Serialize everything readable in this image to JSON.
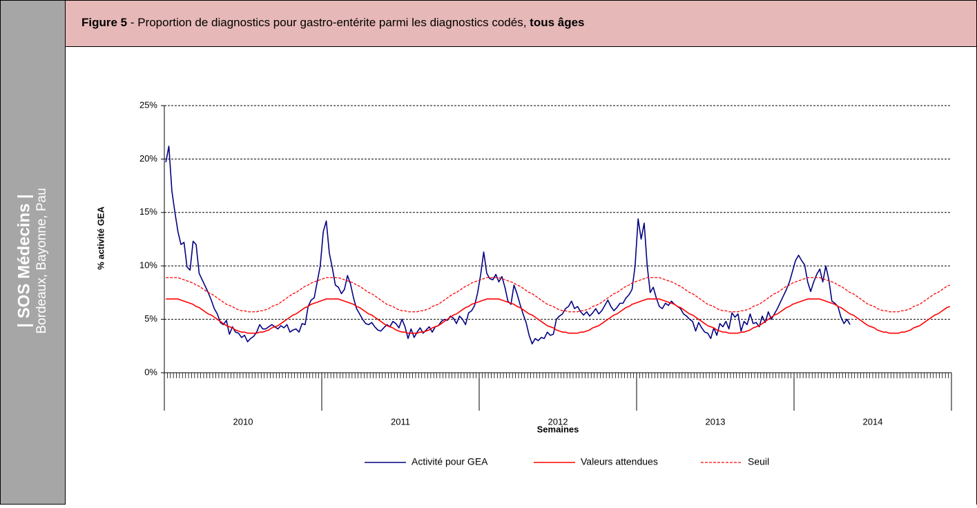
{
  "sidebar": {
    "title": "| SOS Médecins |",
    "subtitle": "Bordeaux, Bayonne, Pau"
  },
  "header": {
    "figure": "Figure 5",
    "text": " - Proportion de diagnostics pour gastro-entérite parmi les diagnostics codés, ",
    "emphasis": "tous âges"
  },
  "chart_data": {
    "type": "line",
    "ylabel": "% activité GEA",
    "xlabel": "Semaines",
    "x_groups": [
      "2010",
      "2011",
      "2012",
      "2013",
      "2014"
    ],
    "categories": [
      null,
      null,
      null,
      null,
      null,
      null,
      null,
      null,
      null,
      null,
      null,
      null,
      null,
      null,
      null,
      null,
      null,
      null,
      null,
      null,
      null,
      null,
      null,
      null,
      null,
      null,
      null,
      null,
      null,
      null,
      null,
      null,
      null,
      null,
      null,
      null,
      null,
      null,
      null,
      null,
      null,
      null,
      null,
      null,
      null,
      null,
      null,
      null,
      null,
      null,
      null,
      null,
      null,
      null,
      null,
      null,
      null,
      null,
      null,
      null,
      null,
      null,
      null,
      null,
      null,
      null,
      null,
      null,
      null,
      null,
      null,
      null,
      null,
      null,
      null,
      null,
      null,
      null,
      null,
      null,
      null,
      null,
      null,
      null,
      null,
      null,
      null,
      null,
      null,
      null,
      null,
      null,
      null,
      null,
      null,
      null,
      null,
      null,
      null,
      null,
      null,
      null,
      null,
      null,
      null,
      null,
      null,
      null,
      null,
      null,
      null,
      null,
      null,
      null,
      null,
      null,
      null,
      null,
      null,
      null,
      null,
      null,
      null,
      null,
      null,
      null,
      null,
      null,
      null,
      null,
      null,
      null,
      null,
      null,
      null,
      null,
      null,
      null,
      null,
      null,
      null,
      null,
      null,
      null,
      null,
      null,
      null,
      null,
      null,
      null,
      null,
      null,
      null,
      null,
      null,
      null,
      null,
      null,
      null,
      null,
      null,
      null,
      null,
      null,
      null,
      null,
      null,
      null,
      null,
      null,
      null,
      null,
      null,
      null,
      null,
      null,
      null,
      null,
      null,
      null,
      null,
      null,
      null,
      null,
      null,
      null,
      null,
      null,
      null,
      null,
      null,
      null,
      null,
      null,
      null,
      null,
      null,
      null,
      null,
      null,
      null,
      null,
      null,
      null,
      null,
      null,
      null,
      null,
      null,
      null,
      null,
      null,
      null,
      null,
      null,
      null,
      null,
      null,
      null,
      null,
      null,
      null,
      null,
      null,
      null,
      null,
      null,
      null,
      null,
      null,
      null,
      null,
      null,
      null,
      null,
      null,
      null,
      null,
      null,
      null,
      null,
      null,
      null,
      null,
      null,
      null,
      null,
      null,
      null,
      null,
      null,
      null,
      null,
      null,
      null,
      null,
      null,
      null,
      null,
      null
    ],
    "series": [
      {
        "name": "Activité pour GEA",
        "color": "#000080",
        "dashed": false,
        "values": [
          19.7,
          21.2,
          17.0,
          15.0,
          13.2,
          12.0,
          12.2,
          9.9,
          9.6,
          12.3,
          12.0,
          9.3,
          8.7,
          8.1,
          7.5,
          6.8,
          6.0,
          5.5,
          4.7,
          4.5,
          4.9,
          3.6,
          4.3,
          3.8,
          3.7,
          3.3,
          3.5,
          2.9,
          3.2,
          3.4,
          3.8,
          4.5,
          4.1,
          4.1,
          4.3,
          4.5,
          4.3,
          4.1,
          4.4,
          4.2,
          4.5,
          3.8,
          4.0,
          4.1,
          3.8,
          4.6,
          4.5,
          6.2,
          6.8,
          7.0,
          8.5,
          10.0,
          13.2,
          14.2,
          11.2,
          9.8,
          8.2,
          8.0,
          7.4,
          7.8,
          9.1,
          8.3,
          7.0,
          6.0,
          5.5,
          5.0,
          4.6,
          4.5,
          4.7,
          4.3,
          4.0,
          3.9,
          4.2,
          4.5,
          4.3,
          4.8,
          4.6,
          4.2,
          5.0,
          4.3,
          3.2,
          4.1,
          3.3,
          3.8,
          4.2,
          3.7,
          4.0,
          4.3,
          3.8,
          4.3,
          4.4,
          4.8,
          5.0,
          4.9,
          5.3,
          5.1,
          4.6,
          5.3,
          5.0,
          4.5,
          5.6,
          5.8,
          6.3,
          7.5,
          9.2,
          11.3,
          9.3,
          8.8,
          8.7,
          9.2,
          8.5,
          9.0,
          8.0,
          6.7,
          6.4,
          8.2,
          7.4,
          6.4,
          5.5,
          4.7,
          3.5,
          2.7,
          3.2,
          3.0,
          3.3,
          3.2,
          3.8,
          3.5,
          3.6,
          5.0,
          5.3,
          5.5,
          6.0,
          6.2,
          6.7,
          6.0,
          6.2,
          5.7,
          5.4,
          5.7,
          5.3,
          5.6,
          6.0,
          5.5,
          5.8,
          6.3,
          6.8,
          6.2,
          5.8,
          6.1,
          6.5,
          6.5,
          7.0,
          7.3,
          7.8,
          10.0,
          14.4,
          12.5,
          14.0,
          10.0,
          7.5,
          8.0,
          7.0,
          6.2,
          6.0,
          6.5,
          6.3,
          6.7,
          6.4,
          6.2,
          6.0,
          5.5,
          5.3,
          5.0,
          4.8,
          3.9,
          4.7,
          4.2,
          3.8,
          3.7,
          3.2,
          4.2,
          3.5,
          4.6,
          4.3,
          4.8,
          4.1,
          5.6,
          5.2,
          5.5,
          3.9,
          4.8,
          4.5,
          5.5,
          4.6,
          4.7,
          4.3,
          5.3,
          4.7,
          5.7,
          5.0,
          5.5,
          6.0,
          6.6,
          7.2,
          7.8,
          8.5,
          9.5,
          10.5,
          11.0,
          10.5,
          10.1,
          8.5,
          7.6,
          8.5,
          9.2,
          9.7,
          8.5,
          10.0,
          8.7,
          6.7,
          6.5,
          6.2,
          5.2,
          4.6,
          5.0,
          4.5,
          null,
          null,
          null,
          null,
          null,
          null,
          null,
          null,
          null,
          null,
          null,
          null,
          null,
          null,
          null,
          null,
          null,
          null,
          null,
          null,
          null,
          null,
          null,
          null,
          null,
          null,
          null,
          null,
          null,
          null,
          null,
          null,
          null
        ]
      },
      {
        "name": "Valeurs attendues",
        "color": "#ff0000",
        "dashed": false,
        "values": [
          6.9,
          6.9,
          6.9,
          6.9,
          6.9,
          6.8,
          6.7,
          6.6,
          6.5,
          6.4,
          6.2,
          6.1,
          5.9,
          5.7,
          5.5,
          5.4,
          5.2,
          5.0,
          4.8,
          4.6,
          4.4,
          4.3,
          4.2,
          4.0,
          3.9,
          3.8,
          3.8,
          3.7,
          3.7,
          3.7,
          3.7,
          3.8,
          3.8,
          3.9,
          4.0,
          4.2,
          4.3,
          4.4,
          4.6,
          4.8,
          5.0,
          5.2,
          5.4,
          5.5,
          5.7,
          5.9,
          6.1,
          6.2,
          6.4,
          6.5,
          6.6,
          6.7,
          6.8,
          6.9,
          6.9,
          6.9,
          6.9,
          6.9,
          6.8,
          6.7,
          6.6,
          6.5,
          6.4,
          6.2,
          6.1,
          5.9,
          5.7,
          5.5,
          5.4,
          5.2,
          5.0,
          4.8,
          4.6,
          4.4,
          4.3,
          4.2,
          4.0,
          3.9,
          3.8,
          3.8,
          3.7,
          3.7,
          3.7,
          3.7,
          3.8,
          3.8,
          3.9,
          4.0,
          4.2,
          4.3,
          4.4,
          4.6,
          4.8,
          5.0,
          5.2,
          5.4,
          5.5,
          5.7,
          5.9,
          6.1,
          6.2,
          6.4,
          6.5,
          6.6,
          6.7,
          6.8,
          6.9,
          6.9,
          6.9,
          6.9,
          6.9,
          6.8,
          6.7,
          6.6,
          6.5,
          6.4,
          6.2,
          6.1,
          5.9,
          5.7,
          5.5,
          5.4,
          5.2,
          5.0,
          4.8,
          4.6,
          4.4,
          4.3,
          4.2,
          4.0,
          3.9,
          3.8,
          3.8,
          3.7,
          3.7,
          3.7,
          3.7,
          3.8,
          3.8,
          3.9,
          4.0,
          4.2,
          4.3,
          4.4,
          4.6,
          4.8,
          5.0,
          5.2,
          5.4,
          5.5,
          5.7,
          5.9,
          6.1,
          6.2,
          6.4,
          6.5,
          6.6,
          6.7,
          6.8,
          6.9,
          6.9,
          6.9,
          6.9,
          6.9,
          6.8,
          6.7,
          6.6,
          6.5,
          6.4,
          6.2,
          6.1,
          5.9,
          5.7,
          5.5,
          5.4,
          5.2,
          5.0,
          4.8,
          4.6,
          4.4,
          4.3,
          4.2,
          4.0,
          3.9,
          3.8,
          3.8,
          3.7,
          3.7,
          3.7,
          3.7,
          3.8,
          3.8,
          3.9,
          4.0,
          4.2,
          4.3,
          4.4,
          4.6,
          4.8,
          5.0,
          5.2,
          5.4,
          5.5,
          5.7,
          5.9,
          6.1,
          6.2,
          6.4,
          6.5,
          6.6,
          6.7,
          6.8,
          6.9,
          6.9,
          6.9,
          6.9,
          6.9,
          6.8,
          6.7,
          6.6,
          6.5,
          6.4,
          6.2,
          6.1,
          5.9,
          5.7,
          5.5,
          5.4,
          5.2,
          5.0,
          4.8,
          4.6,
          4.4,
          4.3,
          4.2,
          4.0,
          3.9,
          3.8,
          3.8,
          3.7,
          3.7,
          3.7,
          3.7,
          3.8,
          3.8,
          3.9,
          4.0,
          4.2,
          4.3,
          4.4,
          4.6,
          4.8,
          5.0,
          5.2,
          5.4,
          5.5,
          5.7,
          5.9,
          6.1,
          6.2
        ]
      },
      {
        "name": "Seuil",
        "color": "#ff0000",
        "dashed": true,
        "values": [
          8.9,
          8.9,
          8.9,
          8.9,
          8.9,
          8.8,
          8.7,
          8.6,
          8.5,
          8.4,
          8.2,
          8.1,
          7.9,
          7.7,
          7.5,
          7.4,
          7.2,
          7.0,
          6.8,
          6.6,
          6.4,
          6.3,
          6.2,
          6.0,
          5.9,
          5.8,
          5.8,
          5.7,
          5.7,
          5.7,
          5.7,
          5.8,
          5.8,
          5.9,
          6.0,
          6.2,
          6.3,
          6.4,
          6.6,
          6.8,
          7.0,
          7.2,
          7.4,
          7.5,
          7.7,
          7.9,
          8.1,
          8.2,
          8.4,
          8.5,
          8.6,
          8.7,
          8.8,
          8.9,
          8.9,
          8.9,
          8.9,
          8.9,
          8.8,
          8.7,
          8.6,
          8.5,
          8.4,
          8.2,
          8.1,
          7.9,
          7.7,
          7.5,
          7.4,
          7.2,
          7.0,
          6.8,
          6.6,
          6.4,
          6.3,
          6.2,
          6.0,
          5.9,
          5.8,
          5.8,
          5.7,
          5.7,
          5.7,
          5.7,
          5.8,
          5.8,
          5.9,
          6.0,
          6.2,
          6.3,
          6.4,
          6.6,
          6.8,
          7.0,
          7.2,
          7.4,
          7.5,
          7.7,
          7.9,
          8.1,
          8.2,
          8.4,
          8.5,
          8.6,
          8.7,
          8.8,
          8.9,
          8.9,
          8.9,
          8.9,
          8.9,
          8.8,
          8.7,
          8.6,
          8.5,
          8.4,
          8.2,
          8.1,
          7.9,
          7.7,
          7.5,
          7.4,
          7.2,
          7.0,
          6.8,
          6.6,
          6.4,
          6.3,
          6.2,
          6.0,
          5.9,
          5.8,
          5.8,
          5.7,
          5.7,
          5.7,
          5.7,
          5.8,
          5.8,
          5.9,
          6.0,
          6.2,
          6.3,
          6.4,
          6.6,
          6.8,
          7.0,
          7.2,
          7.4,
          7.5,
          7.7,
          7.9,
          8.1,
          8.2,
          8.4,
          8.5,
          8.6,
          8.7,
          8.8,
          8.9,
          8.9,
          8.9,
          8.9,
          8.9,
          8.8,
          8.7,
          8.6,
          8.5,
          8.4,
          8.2,
          8.1,
          7.9,
          7.7,
          7.5,
          7.4,
          7.2,
          7.0,
          6.8,
          6.6,
          6.4,
          6.3,
          6.2,
          6.0,
          5.9,
          5.8,
          5.8,
          5.7,
          5.7,
          5.7,
          5.7,
          5.8,
          5.8,
          5.9,
          6.0,
          6.2,
          6.3,
          6.4,
          6.6,
          6.8,
          7.0,
          7.2,
          7.4,
          7.5,
          7.7,
          7.9,
          8.1,
          8.2,
          8.4,
          8.5,
          8.6,
          8.7,
          8.8,
          8.9,
          8.9,
          8.9,
          8.9,
          8.9,
          8.8,
          8.7,
          8.6,
          8.5,
          8.4,
          8.2,
          8.1,
          7.9,
          7.7,
          7.5,
          7.4,
          7.2,
          7.0,
          6.8,
          6.6,
          6.4,
          6.3,
          6.2,
          6.0,
          5.9,
          5.8,
          5.8,
          5.7,
          5.7,
          5.7,
          5.7,
          5.8,
          5.8,
          5.9,
          6.0,
          6.2,
          6.3,
          6.4,
          6.6,
          6.8,
          7.0,
          7.2,
          7.4,
          7.5,
          7.7,
          7.9,
          8.1,
          8.2
        ]
      }
    ],
    "ylim": [
      0,
      25
    ],
    "yticks": [
      {
        "value": 0,
        "label": "0%"
      },
      {
        "value": 5,
        "label": "5%"
      },
      {
        "value": 10,
        "label": "10%"
      },
      {
        "value": 15,
        "label": "15%"
      },
      {
        "value": 20,
        "label": "20%"
      },
      {
        "value": 25,
        "label": "25%"
      }
    ],
    "grid": true,
    "legend": "bottom"
  }
}
